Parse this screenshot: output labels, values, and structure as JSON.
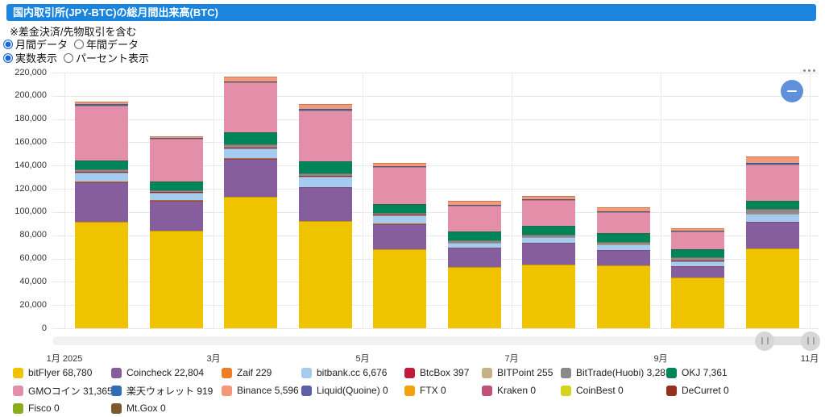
{
  "title": "国内取引所(JPY-BTC)の総月間出来高(BTC)",
  "note": "※差金決済/先物取引を含む",
  "controls": {
    "period": {
      "options": [
        {
          "label": "月間データ",
          "selected": true
        },
        {
          "label": "年間データ",
          "selected": false
        }
      ]
    },
    "display": {
      "options": [
        {
          "label": "実数表示",
          "selected": true
        },
        {
          "label": "パーセント表示",
          "selected": false
        }
      ]
    }
  },
  "colors": {
    "titlebar_blue": "#1b85dd",
    "radio_blue": "#1a67d2",
    "gridline": "#e8e8e8",
    "axis_text": "#333333",
    "zoom_button_blue": "#6190db"
  },
  "icons": {
    "more_options": "more-options-dots",
    "zoom_out": "minus",
    "slider_grip": "double-bar"
  },
  "chart_data": {
    "type": "bar",
    "stacked": true,
    "title": "国内取引所(JPY-BTC)の総月間出来高(BTC)",
    "xlabel": "",
    "ylabel": "",
    "ylim": [
      0,
      220000
    ],
    "y_tick_step": 20000,
    "grid": true,
    "legend_position": "bottom",
    "categories": [
      "1月 2025",
      "2月",
      "3月",
      "4月",
      "5月",
      "6月",
      "7月",
      "8月",
      "9月",
      "10月"
    ],
    "x_tick_labels": [
      "1月 2025",
      "3月",
      "5月",
      "7月",
      "9月",
      "11月"
    ],
    "series": [
      {
        "id": "bitflyer",
        "name": "bitFlyer",
        "color": "#f0c300",
        "values": [
          91300,
          84000,
          113300,
          92500,
          67700,
          52600,
          55000,
          53800,
          43400,
          68780
        ]
      },
      {
        "id": "coincheck",
        "name": "Coincheck",
        "color": "#875e9d",
        "values": [
          34500,
          26000,
          32700,
          28900,
          22000,
          16700,
          18400,
          13200,
          9900,
          22804
        ]
      },
      {
        "id": "zaif",
        "name": "Zaif",
        "color": "#ee7d23",
        "values": [
          300,
          250,
          300,
          250,
          200,
          200,
          200,
          200,
          150,
          229
        ]
      },
      {
        "id": "bitbank",
        "name": "bitbank.cc",
        "color": "#a5ccef",
        "values": [
          7900,
          6500,
          8500,
          8800,
          7400,
          3900,
          4700,
          5000,
          4400,
          6676
        ]
      },
      {
        "id": "btcbox",
        "name": "BtcBox",
        "color": "#c11a3b",
        "values": [
          400,
          350,
          400,
          400,
          350,
          300,
          300,
          300,
          250,
          397
        ]
      },
      {
        "id": "bitpoint",
        "name": "BITPoint",
        "color": "#c5b286",
        "values": [
          250,
          200,
          250,
          250,
          200,
          150,
          150,
          150,
          150,
          255
        ]
      },
      {
        "id": "bittrade",
        "name": "BitTrade(Huobi)",
        "color": "#8a8a8a",
        "values": [
          2300,
          1500,
          3000,
          2000,
          1500,
          2000,
          1800,
          1800,
          3000,
          3283
        ]
      },
      {
        "id": "okj",
        "name": "OKJ",
        "color": "#00855a",
        "values": [
          7400,
          7400,
          10400,
          10300,
          7400,
          7500,
          7600,
          7200,
          6500,
          7361
        ]
      },
      {
        "id": "gmo",
        "name": "GMOコイン",
        "color": "#e48fa9",
        "values": [
          47200,
          36800,
          42800,
          44300,
          31900,
          22000,
          22000,
          18300,
          15600,
          31365
        ]
      },
      {
        "id": "rakuten",
        "name": "楽天ウォレット",
        "color": "#2f6eb5",
        "values": [
          1200,
          800,
          1000,
          900,
          800,
          700,
          700,
          600,
          500,
          919
        ]
      },
      {
        "id": "binance",
        "name": "Binance",
        "color": "#f4987a",
        "values": [
          2500,
          1200,
          4000,
          4200,
          3000,
          3500,
          3200,
          3700,
          2400,
          5596
        ]
      },
      {
        "id": "liquid",
        "name": "Liquid(Quoine)",
        "color": "#5c5fa6",
        "values": [
          0,
          0,
          0,
          0,
          0,
          0,
          0,
          0,
          0,
          0
        ]
      },
      {
        "id": "ftx",
        "name": "FTX",
        "color": "#f2a20d",
        "values": [
          0,
          0,
          0,
          0,
          0,
          0,
          0,
          0,
          0,
          0
        ]
      },
      {
        "id": "kraken",
        "name": "Kraken",
        "color": "#c05278",
        "values": [
          0,
          0,
          0,
          0,
          0,
          0,
          0,
          0,
          0,
          0
        ]
      },
      {
        "id": "coinbest",
        "name": "CoinBest",
        "color": "#d6d21d",
        "values": [
          0,
          0,
          0,
          0,
          0,
          0,
          0,
          0,
          0,
          0
        ]
      },
      {
        "id": "decurret",
        "name": "DeCurret",
        "color": "#93311e",
        "values": [
          0,
          0,
          0,
          0,
          0,
          0,
          0,
          0,
          0,
          0
        ]
      },
      {
        "id": "fisco",
        "name": "Fisco",
        "color": "#8aad1d",
        "values": [
          0,
          0,
          0,
          0,
          0,
          0,
          0,
          0,
          0,
          0
        ]
      },
      {
        "id": "mtgox",
        "name": "Mt.Gox",
        "color": "#7d5a2d",
        "values": [
          0,
          0,
          0,
          0,
          0,
          0,
          0,
          0,
          0,
          0
        ]
      }
    ]
  },
  "legend": {
    "items": [
      {
        "label": "bitFlyer",
        "value": 68780,
        "color": "#f0c300"
      },
      {
        "label": "Coincheck",
        "value": 22804,
        "color": "#875e9d"
      },
      {
        "label": "Zaif",
        "value": 229,
        "color": "#ee7d23"
      },
      {
        "label": "bitbank.cc",
        "value": 6676,
        "color": "#a5ccef"
      },
      {
        "label": "BtcBox",
        "value": 397,
        "color": "#c11a3b"
      },
      {
        "label": "BITPoint",
        "value": 255,
        "color": "#c5b286"
      },
      {
        "label": "BitTrade(Huobi)",
        "value": 3283,
        "color": "#8a8a8a"
      },
      {
        "label": "OKJ",
        "value": 7361,
        "color": "#00855a"
      },
      {
        "label": "GMOコイン",
        "value": 31365,
        "color": "#e48fa9"
      },
      {
        "label": "楽天ウォレット",
        "value": 919,
        "color": "#2f6eb5"
      },
      {
        "label": "Binance",
        "value": 5596,
        "color": "#f4987a"
      },
      {
        "label": "Liquid(Quoine)",
        "value": 0,
        "color": "#5c5fa6"
      },
      {
        "label": "FTX",
        "value": 0,
        "color": "#f2a20d"
      },
      {
        "label": "Kraken",
        "value": 0,
        "color": "#c05278"
      },
      {
        "label": "CoinBest",
        "value": 0,
        "color": "#d6d21d"
      },
      {
        "label": "DeCurret",
        "value": 0,
        "color": "#93311e"
      },
      {
        "label": "Fisco",
        "value": 0,
        "color": "#8aad1d"
      },
      {
        "label": "Mt.Gox",
        "value": 0,
        "color": "#7d5a2d"
      }
    ]
  }
}
